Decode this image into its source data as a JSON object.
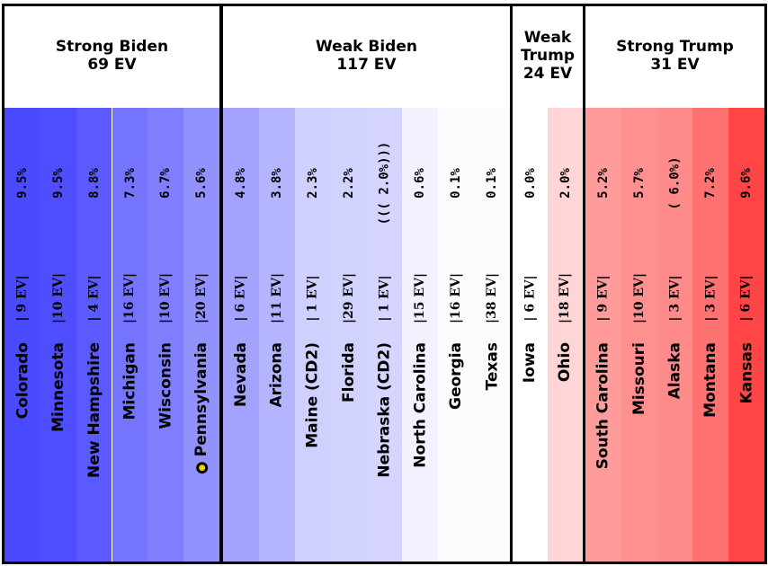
{
  "groups": [
    {
      "title": "Strong Biden",
      "ev": "69 EV",
      "states": [
        {
          "name": "Colorado",
          "ev": "| 9 EV|",
          "margin": "9.5%",
          "color": "#4a4aff"
        },
        {
          "name": "Minnesota",
          "ev": "|10 EV|",
          "margin": "9.5%",
          "color": "#4e4eff"
        },
        {
          "name": "New Hampshire",
          "ev": "| 4 EV|",
          "margin": "8.8%",
          "color": "#5a5aff"
        },
        {
          "name": "Michigan",
          "ev": "|16 EV|",
          "margin": "7.3%",
          "color": "#7474ff"
        },
        {
          "name": "Wisconsin",
          "ev": "|10 EV|",
          "margin": "6.7%",
          "color": "#7e7eff"
        },
        {
          "name": "Pennsylvania",
          "ev": "|20 EV|",
          "margin": "5.6%",
          "color": "#9292ff",
          "marker": true
        }
      ]
    },
    {
      "title": "Weak Biden",
      "ev": "117 EV",
      "states": [
        {
          "name": "Nevada",
          "ev": "| 6 EV|",
          "margin": "4.8%",
          "color": "#a3a3ff"
        },
        {
          "name": "Arizona",
          "ev": "|11 EV|",
          "margin": "3.8%",
          "color": "#b5b5ff"
        },
        {
          "name": "Maine (CD2)",
          "ev": "| 1 EV|",
          "margin": "2.3%",
          "color": "#d0d0ff"
        },
        {
          "name": "Florida",
          "ev": "|29 EV|",
          "margin": "2.2%",
          "color": "#d2d2ff"
        },
        {
          "name": "Nebraska (CD2)",
          "ev": "| 1 EV|",
          "margin": "((( 2.0%)))",
          "color": "#d5d5ff"
        },
        {
          "name": "North Carolina",
          "ev": "|15 EV|",
          "margin": "0.6%",
          "color": "#f2f2ff"
        },
        {
          "name": "Georgia",
          "ev": "|16 EV|",
          "margin": "0.1%",
          "color": "#fcfcff"
        },
        {
          "name": "Texas",
          "ev": "|38 EV|",
          "margin": "0.1%",
          "color": "#fcfcff"
        }
      ]
    },
    {
      "title_lines": [
        "Weak",
        "Trump"
      ],
      "ev": "24 EV",
      "states": [
        {
          "name": "Iowa",
          "ev": "| 6 EV|",
          "margin": "0.0%",
          "color": "#ffffff"
        },
        {
          "name": "Ohio",
          "ev": "|18 EV|",
          "margin": "2.0%",
          "color": "#ffd5d5"
        }
      ]
    },
    {
      "title": "Strong Trump",
      "ev": "31 EV",
      "states": [
        {
          "name": "South Carolina",
          "ev": "| 9 EV|",
          "margin": "5.2%",
          "color": "#ff9b9b"
        },
        {
          "name": "Missouri",
          "ev": "|10 EV|",
          "margin": "5.7%",
          "color": "#ff9090"
        },
        {
          "name": "Alaska",
          "ev": "| 3 EV|",
          "margin": "( 6.0%)",
          "color": "#ff8a8a"
        },
        {
          "name": "Montana",
          "ev": "| 3 EV|",
          "margin": "7.2%",
          "color": "#ff7272"
        },
        {
          "name": "Kansas",
          "ev": "| 6 EV|",
          "margin": "9.6%",
          "color": "#ff4545"
        }
      ]
    }
  ],
  "chart_data": {
    "type": "bar",
    "categories": [
      "Colorado",
      "Minnesota",
      "New Hampshire",
      "Michigan",
      "Wisconsin",
      "Pennsylvania",
      "Nevada",
      "Arizona",
      "Maine (CD2)",
      "Florida",
      "Nebraska (CD2)",
      "North Carolina",
      "Georgia",
      "Texas",
      "Iowa",
      "Ohio",
      "South Carolina",
      "Missouri",
      "Alaska",
      "Montana",
      "Kansas"
    ],
    "series": [
      {
        "values": [
          9.5,
          9.5,
          8.8,
          7.3,
          6.7,
          5.6,
          4.8,
          3.8,
          2.3,
          2.2,
          2.0,
          0.6,
          0.1,
          0.1,
          0.0,
          2.0,
          5.2,
          5.7,
          6.0,
          7.2,
          9.6
        ]
      }
    ],
    "electoral_votes": [
      9,
      10,
      4,
      16,
      10,
      20,
      6,
      11,
      1,
      29,
      1,
      15,
      16,
      38,
      6,
      18,
      9,
      10,
      3,
      3,
      6
    ],
    "groups": [
      "Strong Biden",
      "Weak Biden",
      "Weak Trump",
      "Strong Trump"
    ],
    "group_ev": [
      69,
      117,
      24,
      31
    ]
  }
}
